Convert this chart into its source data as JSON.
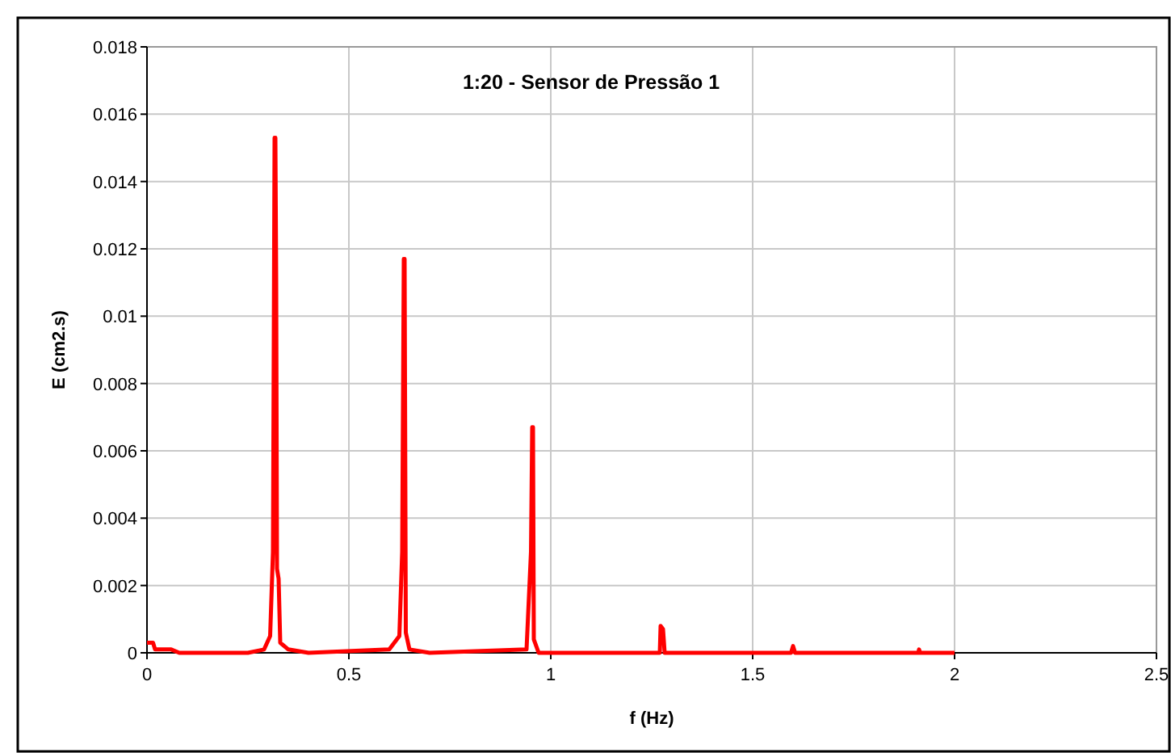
{
  "chart_data": {
    "type": "line",
    "title": "1:20 - Sensor de Pressão 1",
    "xlabel": "f (Hz)",
    "ylabel": "E (cm2.s)",
    "x": [
      0,
      0.005,
      0.015,
      0.02,
      0.06,
      0.08,
      0.25,
      0.29,
      0.305,
      0.312,
      0.316,
      0.318,
      0.32,
      0.322,
      0.326,
      0.33,
      0.35,
      0.4,
      0.6,
      0.625,
      0.632,
      0.636,
      0.638,
      0.641,
      0.65,
      0.7,
      0.94,
      0.951,
      0.954,
      0.956,
      0.958,
      0.97,
      1.27,
      1.272,
      1.278,
      1.282,
      1.595,
      1.6,
      1.605,
      1.91,
      1.912,
      1.915,
      2.0
    ],
    "series": [
      {
        "color": "#ff0000",
        "values": [
          0.0003,
          0.0003,
          0.0003,
          0.0001,
          0.0001,
          0,
          0,
          0.0001,
          0.0005,
          0.003,
          0.0153,
          0.0153,
          0.011,
          0.0025,
          0.0022,
          0.0003,
          0.0001,
          0,
          0.0001,
          0.0005,
          0.003,
          0.0117,
          0.0117,
          0.0006,
          0.0001,
          0,
          0.0001,
          0.003,
          0.0067,
          0.0067,
          0.0004,
          0,
          0,
          0.0008,
          0.0007,
          0,
          0,
          0.0002,
          0,
          0,
          0.0001,
          0,
          0
        ]
      }
    ],
    "xlim": [
      0,
      2.5
    ],
    "xticks": [
      0,
      0.5,
      1,
      1.5,
      2,
      2.5
    ],
    "ylim": [
      0,
      0.018
    ],
    "yticks": [
      0,
      0.002,
      0.004,
      0.006,
      0.008,
      0.01,
      0.012,
      0.014,
      0.016,
      0.018
    ],
    "grid": true,
    "marker": "none",
    "line_style": "solid"
  }
}
